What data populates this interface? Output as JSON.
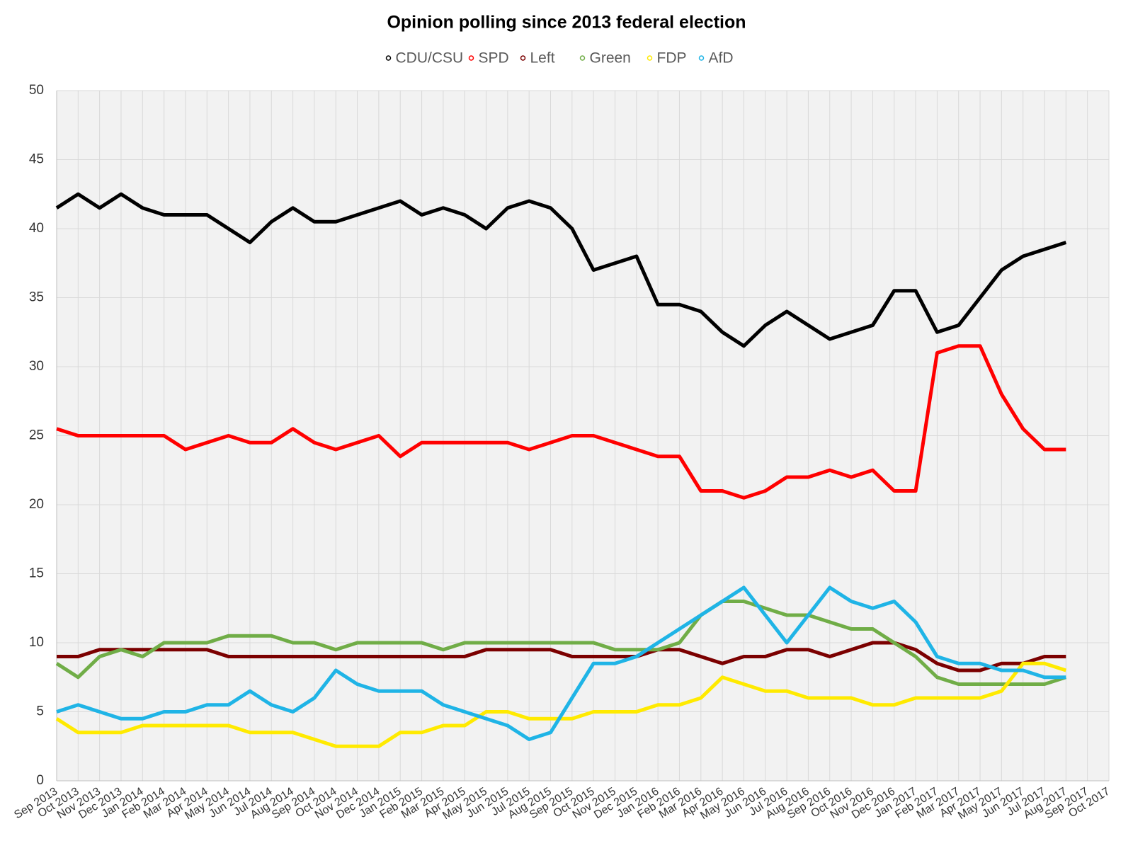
{
  "chart_data": {
    "type": "line",
    "title": "Opinion polling since 2013 federal election",
    "categories": [
      "Sep 2013",
      "Oct 2013",
      "Nov 2013",
      "Dec 2013",
      "Jan 2014",
      "Feb 2014",
      "Mar 2014",
      "Apr 2014",
      "May 2014",
      "Jun 2014",
      "Jul 2014",
      "Aug 2014",
      "Sep 2014",
      "Oct 2014",
      "Nov 2014",
      "Dec 2014",
      "Jan 2015",
      "Feb 2015",
      "Mar 2015",
      "Apr 2015",
      "May 2015",
      "Jun 2015",
      "Jul 2015",
      "Aug 2015",
      "Sep 2015",
      "Oct 2015",
      "Nov 2015",
      "Dec 2015",
      "Jan 2016",
      "Feb 2016",
      "Mar 2016",
      "Apr 2016",
      "May 2016",
      "Jun 2016",
      "Jul 2016",
      "Aug 2016",
      "Sep 2016",
      "Oct 2016",
      "Nov 2016",
      "Dec 2016",
      "Jan 2017",
      "Feb 2017",
      "Mar 2017",
      "Apr 2017",
      "May 2017",
      "Jun 2017",
      "Jul 2017",
      "Aug 2017",
      "Sep 2017",
      "Oct 2017"
    ],
    "series": [
      {
        "name": "CDU/CSU",
        "color": "#000000",
        "values": [
          41.5,
          42.5,
          41.5,
          42.5,
          41.5,
          41,
          41,
          41,
          40,
          39,
          40.5,
          41.5,
          40.5,
          40.5,
          41,
          41.5,
          42,
          41,
          41.5,
          41,
          40,
          41.5,
          42,
          41.5,
          40,
          37,
          37.5,
          38,
          34.5,
          34.5,
          34,
          32.5,
          31.5,
          33,
          34,
          33,
          32,
          32.5,
          33,
          35.5,
          35.5,
          32.5,
          33,
          35,
          37,
          38,
          38.5,
          39,
          null,
          null
        ]
      },
      {
        "name": "SPD",
        "color": "#ff0000",
        "values": [
          25.5,
          25,
          25,
          25,
          25,
          25,
          24,
          24.5,
          25,
          24.5,
          24.5,
          25.5,
          24.5,
          24,
          24.5,
          25,
          23.5,
          24.5,
          24.5,
          24.5,
          24.5,
          24.5,
          24,
          24.5,
          25,
          25,
          24.5,
          24,
          23.5,
          23.5,
          21,
          21,
          20.5,
          21,
          22,
          22,
          22.5,
          22,
          22.5,
          21,
          21,
          31,
          31.5,
          31.5,
          28,
          25.5,
          24,
          24,
          null,
          null
        ]
      },
      {
        "name": "Left",
        "color": "#7b0000",
        "values": [
          9,
          9,
          9.5,
          9.5,
          9.5,
          9.5,
          9.5,
          9.5,
          9,
          9,
          9,
          9,
          9,
          9,
          9,
          9,
          9,
          9,
          9,
          9,
          9.5,
          9.5,
          9.5,
          9.5,
          9,
          9,
          9,
          9,
          9.5,
          9.5,
          9,
          8.5,
          9,
          9,
          9.5,
          9.5,
          9,
          9.5,
          10,
          10,
          9.5,
          8.5,
          8,
          8,
          8.5,
          8.5,
          9,
          9,
          null,
          null
        ]
      },
      {
        "name": "Green",
        "color": "#70ad47",
        "values": [
          8.5,
          7.5,
          9,
          9.5,
          9,
          10,
          10,
          10,
          10.5,
          10.5,
          10.5,
          10,
          10,
          9.5,
          10,
          10,
          10,
          10,
          9.5,
          10,
          10,
          10,
          10,
          10,
          10,
          10,
          9.5,
          9.5,
          9.5,
          10,
          12,
          13,
          13,
          12.5,
          12,
          12,
          11.5,
          11,
          11,
          10,
          9,
          7.5,
          7,
          7,
          7,
          7,
          7,
          7.5,
          null,
          null
        ]
      },
      {
        "name": "FDP",
        "color": "#ffea00",
        "values": [
          4.5,
          3.5,
          3.5,
          3.5,
          4,
          4,
          4,
          4,
          4,
          3.5,
          3.5,
          3.5,
          3,
          2.5,
          2.5,
          2.5,
          3.5,
          3.5,
          4,
          4,
          5,
          5,
          4.5,
          4.5,
          4.5,
          5,
          5,
          5,
          5.5,
          5.5,
          6,
          7.5,
          7,
          6.5,
          6.5,
          6,
          6,
          6,
          5.5,
          5.5,
          6,
          6,
          6,
          6,
          6.5,
          8.5,
          8.5,
          8,
          null,
          null
        ]
      },
      {
        "name": "AfD",
        "color": "#1fb4e6",
        "values": [
          5,
          5.5,
          5,
          4.5,
          4.5,
          5,
          5,
          5.5,
          5.5,
          6.5,
          5.5,
          5,
          6,
          8,
          7,
          6.5,
          6.5,
          6.5,
          5.5,
          5,
          4.5,
          4,
          3,
          3.5,
          6,
          8.5,
          8.5,
          9,
          10,
          11,
          12,
          13,
          14,
          12,
          10,
          12,
          14,
          13,
          12.5,
          13,
          11.5,
          9,
          8.5,
          8.5,
          8,
          8,
          7.5,
          7.5,
          null,
          null
        ]
      }
    ],
    "ylim": [
      0,
      50
    ],
    "yticks": [
      0,
      5,
      10,
      15,
      20,
      25,
      30,
      35,
      40,
      45,
      50
    ],
    "grid": true
  }
}
